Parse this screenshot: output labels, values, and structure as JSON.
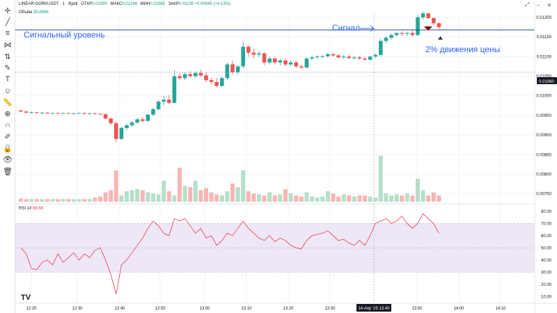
{
  "header": {
    "symbol": "LINEAR:GORKUSDT · 1 · Bybit",
    "ohlc": [
      {
        "k": "ОТКР",
        "v": "0.01090"
      },
      {
        "k": "МАКС",
        "v": "0.01246"
      },
      {
        "k": "МИН",
        "v": "0.01085"
      },
      {
        "k": "ЗАКР",
        "v": "0.01135 +0.00045 (+4.13%)"
      }
    ],
    "volume_label": "Объём",
    "volume_value": "35.894K",
    "rsi_label": "RSI 14",
    "rsi_value": "68.66"
  },
  "annotations": {
    "signal_level": "Сигнальный уровень",
    "signal": "Сигнал",
    "price_move": "2% движения цены"
  },
  "colors": {
    "up": "#26a69a",
    "down": "#ef5350",
    "up_vol": "#b5dfc9",
    "down_vol": "#f7b6b5",
    "accent": "#2962ff",
    "level_line": "#1a4a8a",
    "rsi_line": "#f23645",
    "rsi_band": "#ede7f6"
  },
  "toolbar_icons": [
    "crosshair-icon",
    "trendline-icon",
    "fib-icon",
    "pattern-icon",
    "forecast-icon",
    "brush-icon",
    "text-icon",
    "emoji-icon",
    "ruler-icon",
    "zoom-icon",
    "magnet-icon",
    "stay-drawing-icon",
    "lock-icon",
    "eye-icon",
    "trash-icon"
  ],
  "price_axis": {
    "labels": [
      "0.01200",
      "0.01150",
      "0.01100",
      "0.01050",
      "0.01000",
      "0.00950",
      "0.00900",
      "0.00850",
      "0.00800",
      "0.00750"
    ],
    "current": "0.01060"
  },
  "rsi_axis": {
    "labels": [
      "80.00",
      "70.00",
      "60.00",
      "50.00",
      "40.00",
      "30.00",
      "20.00",
      "10.00"
    ]
  },
  "time_axis": {
    "labels": [
      "12:20",
      "12:30",
      "12:40",
      "12:50",
      "13:00",
      "13:10",
      "13:20",
      "13:30",
      "13:50",
      "14:00",
      "14:10"
    ],
    "highlight": "14 Апр '25   13:40"
  },
  "chart_data": {
    "type": "candlestick",
    "ylim": [
      0.0073,
      0.0123
    ],
    "signal_level": 0.01168,
    "current_price": 0.0106,
    "candles": [
      [
        0.00963,
        0.00963,
        0.00958,
        0.0096
      ],
      [
        0.0096,
        0.00961,
        0.00955,
        0.00957
      ],
      [
        0.00957,
        0.0096,
        0.00955,
        0.00958
      ],
      [
        0.00958,
        0.00959,
        0.00955,
        0.00956
      ],
      [
        0.00956,
        0.00958,
        0.00955,
        0.00957
      ],
      [
        0.00957,
        0.00958,
        0.00954,
        0.00955
      ],
      [
        0.00955,
        0.00957,
        0.00954,
        0.00956
      ],
      [
        0.00956,
        0.00957,
        0.00954,
        0.00955
      ],
      [
        0.00955,
        0.00957,
        0.00954,
        0.00956
      ],
      [
        0.00956,
        0.00957,
        0.00954,
        0.00955
      ],
      [
        0.00955,
        0.00956,
        0.00953,
        0.00955
      ],
      [
        0.00955,
        0.00957,
        0.00954,
        0.00956
      ],
      [
        0.00956,
        0.00957,
        0.00953,
        0.00954
      ],
      [
        0.00954,
        0.00956,
        0.00953,
        0.00955
      ],
      [
        0.00955,
        0.00957,
        0.00953,
        0.00954
      ],
      [
        0.00954,
        0.00955,
        0.00952,
        0.00953
      ],
      [
        0.00953,
        0.00955,
        0.0094,
        0.00942
      ],
      [
        0.00942,
        0.00945,
        0.00925,
        0.0093
      ],
      [
        0.0093,
        0.00935,
        0.00882,
        0.0089
      ],
      [
        0.0089,
        0.00922,
        0.00888,
        0.00918
      ],
      [
        0.00918,
        0.0093,
        0.00912,
        0.00925
      ],
      [
        0.00925,
        0.00936,
        0.0092,
        0.00932
      ],
      [
        0.00932,
        0.00944,
        0.00928,
        0.0094
      ],
      [
        0.0094,
        0.00946,
        0.00932,
        0.00936
      ],
      [
        0.00936,
        0.00955,
        0.00934,
        0.00952
      ],
      [
        0.00952,
        0.0097,
        0.00948,
        0.00966
      ],
      [
        0.00966,
        0.0099,
        0.00962,
        0.00985
      ],
      [
        0.00985,
        0.01,
        0.00975,
        0.0099
      ],
      [
        0.0099,
        0.01002,
        0.00978,
        0.00982
      ],
      [
        0.00982,
        0.01065,
        0.0098,
        0.0105
      ],
      [
        0.0105,
        0.01058,
        0.0104,
        0.01045
      ],
      [
        0.01045,
        0.0106,
        0.0104,
        0.01055
      ],
      [
        0.01055,
        0.01062,
        0.01045,
        0.0105
      ],
      [
        0.0105,
        0.01062,
        0.01045,
        0.01058
      ],
      [
        0.01058,
        0.01066,
        0.01048,
        0.01052
      ],
      [
        0.01052,
        0.0106,
        0.01035,
        0.0104
      ],
      [
        0.0104,
        0.01046,
        0.0103,
        0.01035
      ],
      [
        0.01035,
        0.01045,
        0.0102,
        0.01025
      ],
      [
        0.01025,
        0.0105,
        0.01022,
        0.01045
      ],
      [
        0.01045,
        0.01085,
        0.0104,
        0.0108
      ],
      [
        0.0108,
        0.0109,
        0.01055,
        0.0106
      ],
      [
        0.0106,
        0.01078,
        0.01055,
        0.01075
      ],
      [
        0.01075,
        0.01138,
        0.0107,
        0.01125
      ],
      [
        0.01125,
        0.0113,
        0.011,
        0.0111
      ],
      [
        0.0111,
        0.0112,
        0.01095,
        0.01105
      ],
      [
        0.01105,
        0.01115,
        0.01098,
        0.01108
      ],
      [
        0.01108,
        0.01112,
        0.01078,
        0.01085
      ],
      [
        0.01085,
        0.011,
        0.0108,
        0.01095
      ],
      [
        0.01095,
        0.011,
        0.0108,
        0.01085
      ],
      [
        0.01085,
        0.01095,
        0.01078,
        0.0109
      ],
      [
        0.0109,
        0.01095,
        0.01075,
        0.0108
      ],
      [
        0.0108,
        0.0109,
        0.01075,
        0.01085
      ],
      [
        0.01085,
        0.0109,
        0.0107,
        0.01075
      ],
      [
        0.01075,
        0.0108,
        0.01068,
        0.01072
      ],
      [
        0.01072,
        0.01098,
        0.0107,
        0.01095
      ],
      [
        0.01095,
        0.01102,
        0.0109,
        0.01098
      ],
      [
        0.01098,
        0.01103,
        0.01094,
        0.011
      ],
      [
        0.011,
        0.01104,
        0.01096,
        0.01101
      ],
      [
        0.01101,
        0.0111,
        0.01098,
        0.01106
      ],
      [
        0.01106,
        0.0111,
        0.011,
        0.01103
      ],
      [
        0.01103,
        0.01106,
        0.01095,
        0.01098
      ],
      [
        0.01098,
        0.01104,
        0.01094,
        0.011
      ],
      [
        0.011,
        0.01104,
        0.01094,
        0.01096
      ],
      [
        0.01096,
        0.01101,
        0.01092,
        0.01098
      ],
      [
        0.01098,
        0.01102,
        0.01092,
        0.01095
      ],
      [
        0.01095,
        0.011,
        0.0109,
        0.01092
      ],
      [
        0.01092,
        0.01102,
        0.0109,
        0.011
      ],
      [
        0.011,
        0.01108,
        0.01096,
        0.01104
      ],
      [
        0.01104,
        0.01145,
        0.011,
        0.0114
      ],
      [
        0.0114,
        0.01152,
        0.01135,
        0.01148
      ],
      [
        0.01148,
        0.01158,
        0.01142,
        0.01155
      ],
      [
        0.01155,
        0.01162,
        0.0115,
        0.0116
      ],
      [
        0.0116,
        0.01165,
        0.01152,
        0.01158
      ],
      [
        0.01158,
        0.01164,
        0.01152,
        0.0116
      ],
      [
        0.0116,
        0.01166,
        0.0115,
        0.01155
      ],
      [
        0.01155,
        0.01205,
        0.01152,
        0.012
      ],
      [
        0.012,
        0.01215,
        0.01195,
        0.0121
      ],
      [
        0.0121,
        0.01212,
        0.01195,
        0.01198
      ],
      [
        0.01198,
        0.012,
        0.0118,
        0.01185
      ],
      [
        0.01185,
        0.01188,
        0.0117,
        0.01175
      ]
    ],
    "volume": [
      6,
      5,
      5,
      5,
      5,
      5,
      5,
      5,
      5,
      5,
      5,
      5,
      5,
      5,
      8,
      10,
      18,
      22,
      60,
      12,
      20,
      22,
      24,
      22,
      18,
      16,
      14,
      40,
      20,
      12,
      65,
      30,
      28,
      40,
      22,
      26,
      18,
      14,
      12,
      20,
      35,
      28,
      60,
      20,
      16,
      14,
      12,
      18,
      12,
      14,
      24,
      16,
      12,
      10,
      18,
      10,
      8,
      10,
      20,
      16,
      10,
      14,
      12,
      10,
      12,
      12,
      10,
      8,
      88,
      16,
      12,
      14,
      12,
      16,
      12,
      44,
      22,
      12,
      18,
      12
    ],
    "volume_ylim": [
      0,
      100
    ],
    "rsi": [
      50,
      45,
      33,
      32,
      38,
      40,
      36,
      45,
      38,
      42,
      46,
      40,
      45,
      42,
      48,
      50,
      40,
      28,
      12,
      36,
      40,
      46,
      52,
      58,
      66,
      72,
      68,
      62,
      60,
      74,
      72,
      74,
      68,
      62,
      66,
      58,
      60,
      52,
      56,
      62,
      60,
      66,
      72,
      66,
      62,
      58,
      56,
      60,
      55,
      58,
      56,
      52,
      50,
      49,
      56,
      60,
      61,
      62,
      64,
      60,
      56,
      57,
      54,
      52,
      56,
      52,
      60,
      70,
      72,
      74,
      70,
      72,
      76,
      70,
      66,
      70,
      78,
      74,
      70,
      62
    ]
  }
}
